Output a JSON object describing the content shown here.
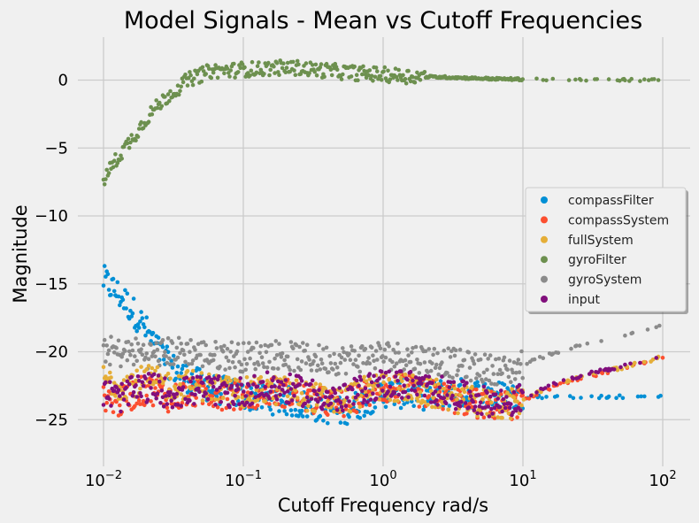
{
  "chart_data": {
    "type": "scatter",
    "title": "Model Signals - Mean vs Cutoff Frequencies",
    "xlabel": "Cutoff Frequency rad/s",
    "ylabel": "Magnitude",
    "xscale": "log",
    "xlim": [
      0.01,
      100
    ],
    "ylim": [
      -28,
      3
    ],
    "xticks": [
      {
        "value": 0.01,
        "base": "10",
        "exp": "−2"
      },
      {
        "value": 0.1,
        "base": "10",
        "exp": "−1"
      },
      {
        "value": 1,
        "base": "10",
        "exp": "0"
      },
      {
        "value": 10,
        "base": "10",
        "exp": "1"
      },
      {
        "value": 100,
        "base": "10",
        "exp": "2"
      }
    ],
    "yticks": [
      {
        "value": 0,
        "label": "0"
      },
      {
        "value": -5,
        "label": "−5"
      },
      {
        "value": -10,
        "label": "−10"
      },
      {
        "value": -15,
        "label": "−15"
      },
      {
        "value": -20,
        "label": "−20"
      },
      {
        "value": -25,
        "label": "−25"
      }
    ],
    "grid": true,
    "legend_position": "right",
    "series": [
      {
        "name": "compassFilter",
        "color": "#008fd5",
        "x": [
          0.01,
          0.0115,
          0.0135,
          0.016,
          0.0185,
          0.021,
          0.025,
          0.03,
          0.035,
          0.045,
          0.06,
          0.08,
          0.1,
          0.15,
          0.2,
          0.3,
          0.5,
          0.7,
          1,
          2,
          3,
          5,
          8,
          10
        ],
        "y": [
          -14.7,
          -15.3,
          -16.0,
          -16.9,
          -17.8,
          -18.7,
          -20.0,
          -21.0,
          -21.6,
          -22.2,
          -22.7,
          -23.0,
          -23.2,
          -23.5,
          -23.6,
          -24.0,
          -24.4,
          -23.8,
          -23.0,
          -23.2,
          -23.0,
          -23.1,
          -23.3,
          -23.3
        ]
      },
      {
        "name": "compassSystem",
        "color": "#fc4f30",
        "x": [
          0.01,
          0.013,
          0.017,
          0.022,
          0.03,
          0.04,
          0.06,
          0.08,
          0.1,
          0.15,
          0.2,
          0.3,
          0.5,
          0.7,
          1,
          1.5,
          2,
          3,
          5,
          8,
          10,
          15,
          20,
          30,
          50,
          70,
          100
        ],
        "y": [
          -23.2,
          -23.8,
          -23.0,
          -22.8,
          -23.4,
          -23.1,
          -23.0,
          -23.3,
          -23.2,
          -22.9,
          -23.0,
          -23.5,
          -23.9,
          -23.2,
          -22.7,
          -22.8,
          -23.1,
          -23.4,
          -23.9,
          -24.0,
          -23.6,
          -22.8,
          -22.3,
          -21.8,
          -21.3,
          -20.9,
          -20.5
        ]
      },
      {
        "name": "fullSystem",
        "color": "#e5ae38",
        "x": [
          0.01,
          0.013,
          0.017,
          0.022,
          0.03,
          0.04,
          0.06,
          0.08,
          0.1,
          0.15,
          0.2,
          0.3,
          0.5,
          0.7,
          1,
          1.5,
          2,
          3,
          5,
          8,
          10,
          15,
          20,
          30,
          50,
          70,
          100
        ],
        "y": [
          -22.0,
          -22.4,
          -22.2,
          -22.1,
          -22.5,
          -22.4,
          -22.6,
          -22.9,
          -23.0,
          -22.8,
          -22.9,
          -23.3,
          -23.7,
          -23.0,
          -22.5,
          -22.7,
          -23.0,
          -23.3,
          -23.8,
          -23.9,
          -23.5,
          -22.7,
          -22.2,
          -21.7,
          -21.2,
          -20.8,
          -20.4
        ]
      },
      {
        "name": "gyroFilter",
        "color": "#6d904f",
        "x": [
          0.01,
          0.0115,
          0.0135,
          0.016,
          0.0185,
          0.021,
          0.025,
          0.03,
          0.035,
          0.04,
          0.05,
          0.06,
          0.08,
          0.1,
          0.13,
          0.16,
          0.2,
          0.25,
          0.3,
          0.4,
          0.5,
          0.7,
          1,
          1.5,
          2,
          3,
          5,
          7,
          10,
          15,
          20,
          30,
          50,
          70,
          100
        ],
        "y": [
          -7.4,
          -6.3,
          -5.3,
          -4.3,
          -3.4,
          -2.6,
          -1.8,
          -1.0,
          -0.5,
          0.0,
          0.4,
          0.7,
          0.7,
          0.8,
          0.8,
          0.9,
          0.9,
          0.9,
          0.8,
          0.7,
          0.6,
          0.5,
          0.4,
          0.3,
          0.25,
          0.2,
          0.12,
          0.08,
          0.06,
          0.05,
          0.04,
          0.03,
          0.02,
          0.01,
          0.01
        ]
      },
      {
        "name": "gyroSystem",
        "color": "#8b8b8b",
        "x": [
          0.01,
          0.013,
          0.017,
          0.022,
          0.03,
          0.04,
          0.06,
          0.08,
          0.1,
          0.15,
          0.2,
          0.3,
          0.5,
          0.7,
          1,
          1.5,
          2,
          3,
          5,
          8,
          10,
          15,
          20,
          30,
          50,
          70,
          100
        ],
        "y": [
          -19.8,
          -20.1,
          -20.0,
          -20.2,
          -20.0,
          -19.9,
          -20.3,
          -20.2,
          -20.4,
          -20.1,
          -20.3,
          -20.5,
          -20.6,
          -20.4,
          -20.2,
          -20.4,
          -20.5,
          -20.8,
          -21.2,
          -21.4,
          -20.9,
          -20.3,
          -19.8,
          -19.3,
          -18.8,
          -18.4,
          -18.1
        ]
      },
      {
        "name": "input",
        "color": "#810f7c",
        "x": [
          0.01,
          0.013,
          0.017,
          0.022,
          0.03,
          0.04,
          0.06,
          0.08,
          0.1,
          0.15,
          0.2,
          0.3,
          0.5,
          0.7,
          1,
          1.5,
          2,
          3,
          5,
          8,
          10,
          15,
          20,
          30,
          50,
          70,
          100
        ],
        "y": [
          -23.0,
          -23.4,
          -22.8,
          -22.6,
          -23.1,
          -22.9,
          -22.8,
          -23.1,
          -22.9,
          -22.6,
          -22.7,
          -23.0,
          -23.6,
          -22.8,
          -22.3,
          -22.4,
          -22.7,
          -23.0,
          -23.6,
          -23.8,
          -23.4,
          -22.6,
          -22.1,
          -21.6,
          -21.1,
          -20.7,
          -20.3
        ]
      }
    ]
  }
}
